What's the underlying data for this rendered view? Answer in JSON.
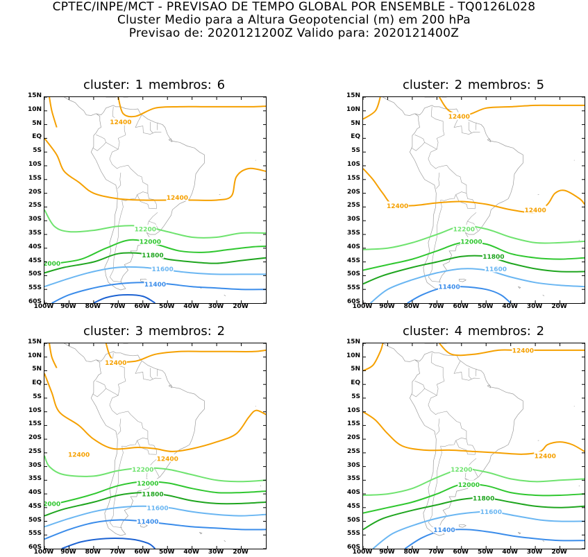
{
  "header": {
    "line1": "CPTEC/INPE/MCT - PREVISAO DE TEMPO GLOBAL POR ENSEMBLE - TQ0126L028",
    "line2": "Cluster Medio para a Altura Geopotencial (m) em 200 hPa",
    "line3": "Previsao de: 2020121200Z    Valido para: 2020121400Z"
  },
  "axes": {
    "lat_labels": [
      "15N",
      "10N",
      "5N",
      "EQ",
      "5S",
      "10S",
      "15S",
      "20S",
      "25S",
      "30S",
      "35S",
      "40S",
      "45S",
      "50S",
      "55S",
      "60S"
    ],
    "lon_labels": [
      "100W",
      "90W",
      "80W",
      "70W",
      "60W",
      "50W",
      "40W",
      "30W",
      "20W"
    ],
    "lat_range": [
      -60,
      15
    ],
    "lon_range": [
      -100,
      -10
    ]
  },
  "colors": {
    "c12400": "#f5a000",
    "c12200": "#6fe36f",
    "c12000": "#2fc72f",
    "c11800": "#1ea51e",
    "c11600": "#6ab6f2",
    "c11400": "#3a8cea",
    "c11200": "#1c62d2",
    "coast": "#9a9a9a"
  },
  "panels": [
    {
      "title": "cluster:  1   membros:  6",
      "labels": [
        {
          "text": "12400",
          "lon": -69,
          "lat": 6,
          "level": "12400"
        },
        {
          "text": "12400",
          "lon": -46,
          "lat": -21.5,
          "level": "12400"
        },
        {
          "text": "12200",
          "lon": -59,
          "lat": -33,
          "level": "12200"
        },
        {
          "text": "12000",
          "lon": -57,
          "lat": -37.5,
          "level": "12000"
        },
        {
          "text": "11800",
          "lon": -56,
          "lat": -42.5,
          "level": "11800"
        },
        {
          "text": "11600",
          "lon": -52,
          "lat": -47.5,
          "level": "11600"
        },
        {
          "text": "11400",
          "lon": -55,
          "lat": -53,
          "level": "11400"
        },
        {
          "text": "2000",
          "lon": -97,
          "lat": -45.5,
          "level": "12000"
        }
      ]
    },
    {
      "title": "cluster:  2   membros:  5",
      "labels": [
        {
          "text": "12400",
          "lon": -61,
          "lat": 8,
          "level": "12400"
        },
        {
          "text": "12400",
          "lon": -86,
          "lat": -24.5,
          "level": "12400"
        },
        {
          "text": "12400",
          "lon": -30,
          "lat": -26,
          "level": "12400"
        },
        {
          "text": "12200",
          "lon": -59,
          "lat": -33,
          "level": "12200"
        },
        {
          "text": "12000",
          "lon": -56,
          "lat": -37.5,
          "level": "12000"
        },
        {
          "text": "11800",
          "lon": -47,
          "lat": -43,
          "level": "11800"
        },
        {
          "text": "11600",
          "lon": -46,
          "lat": -47.5,
          "level": "11600"
        },
        {
          "text": "11400",
          "lon": -65,
          "lat": -54,
          "level": "11400"
        }
      ]
    },
    {
      "title": "cluster:  3   membros:  2",
      "labels": [
        {
          "text": "12400",
          "lon": -71,
          "lat": 8,
          "level": "12400"
        },
        {
          "text": "12400",
          "lon": -86,
          "lat": -25.5,
          "level": "12400"
        },
        {
          "text": "12400",
          "lon": -50,
          "lat": -27,
          "level": "12400"
        },
        {
          "text": "12200",
          "lon": -60,
          "lat": -31,
          "level": "12200"
        },
        {
          "text": "12000",
          "lon": -58,
          "lat": -36,
          "level": "12000"
        },
        {
          "text": "11800",
          "lon": -56,
          "lat": -40,
          "level": "11800"
        },
        {
          "text": "11600",
          "lon": -54,
          "lat": -45,
          "level": "11600"
        },
        {
          "text": "11400",
          "lon": -58,
          "lat": -50,
          "level": "11400"
        },
        {
          "text": "2000",
          "lon": -97,
          "lat": -43.5,
          "level": "12000"
        }
      ]
    },
    {
      "title": "cluster:  4   membros:  2",
      "labels": [
        {
          "text": "12400",
          "lon": -35,
          "lat": 12.5,
          "level": "12400"
        },
        {
          "text": "12400",
          "lon": -26,
          "lat": -26,
          "level": "12400"
        },
        {
          "text": "12200",
          "lon": -60,
          "lat": -31,
          "level": "12200"
        },
        {
          "text": "12000",
          "lon": -57,
          "lat": -36.5,
          "level": "12000"
        },
        {
          "text": "11800",
          "lon": -51,
          "lat": -41.5,
          "level": "11800"
        },
        {
          "text": "11600",
          "lon": -48,
          "lat": -46.5,
          "level": "11600"
        },
        {
          "text": "11400",
          "lon": -67,
          "lat": -53,
          "level": "11400"
        }
      ]
    }
  ]
}
